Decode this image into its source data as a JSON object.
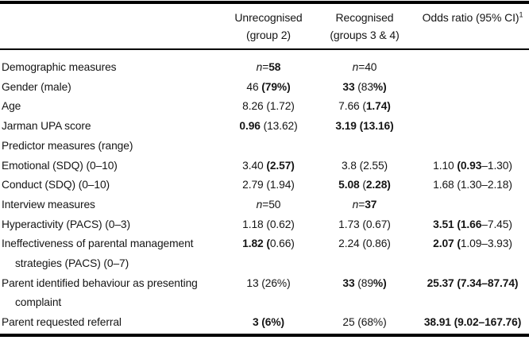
{
  "header": {
    "col2": {
      "line1": "Unrecognised",
      "line2": "(group 2)"
    },
    "col3": {
      "line1": "Recognised",
      "line2": "(groups 3 & 4)"
    },
    "col4": {
      "text": "Odds ratio (95% CI)",
      "footnote_marker": "1"
    }
  },
  "rows": [
    {
      "label": "Demographic measures",
      "unrecognised": [
        {
          "t": "n",
          "i": true
        },
        {
          "t": "="
        },
        {
          "t": "58",
          "b": true
        }
      ],
      "recognised": [
        {
          "t": "n",
          "i": true
        },
        {
          "t": "=40"
        }
      ],
      "odds_ratio": []
    },
    {
      "label": "Gender (male)",
      "unrecognised": [
        {
          "t": "46 "
        },
        {
          "t": "(79%)",
          "b": true
        }
      ],
      "recognised": [
        {
          "t": "33",
          "b": true
        },
        {
          "t": " (83"
        },
        {
          "t": "%)",
          "b": true
        }
      ],
      "odds_ratio": []
    },
    {
      "label": "Age",
      "unrecognised": [
        {
          "t": "8.26 (1.72)"
        }
      ],
      "recognised": [
        {
          "t": "7.66 ("
        },
        {
          "t": "1.74)",
          "b": true
        }
      ],
      "odds_ratio": []
    },
    {
      "label": "Jarman UPA score",
      "unrecognised": [
        {
          "t": "0.96",
          "b": true
        },
        {
          "t": " (13.62)"
        }
      ],
      "recognised": [
        {
          "t": "3.19 (13.16)",
          "b": true
        }
      ],
      "odds_ratio": []
    },
    {
      "label": "Predictor measures (range)",
      "unrecognised": [],
      "recognised": [],
      "odds_ratio": []
    },
    {
      "label": "Emotional (SDQ) (0–10)",
      "unrecognised": [
        {
          "t": "3.40 "
        },
        {
          "t": "(2.57)",
          "b": true
        }
      ],
      "recognised": [
        {
          "t": "3.8 (2.55)"
        }
      ],
      "odds_ratio": [
        {
          "t": "1.10 "
        },
        {
          "t": "(0.93",
          "b": true
        },
        {
          "t": "–1.30)"
        }
      ]
    },
    {
      "label": "Conduct (SDQ) (0–10)",
      "unrecognised": [
        {
          "t": "2.79 (1.94)"
        }
      ],
      "recognised": [
        {
          "t": "5.08",
          "b": true
        },
        {
          "t": " ("
        },
        {
          "t": "2.28)",
          "b": true
        }
      ],
      "odds_ratio": [
        {
          "t": "1.68 (1.30–2.18)"
        }
      ]
    },
    {
      "label": "Interview measures",
      "unrecognised": [
        {
          "t": "n",
          "i": true
        },
        {
          "t": "=50"
        }
      ],
      "recognised": [
        {
          "t": "n",
          "i": true
        },
        {
          "t": "="
        },
        {
          "t": "37",
          "b": true
        }
      ],
      "odds_ratio": []
    },
    {
      "label": "Hyperactivity (PACS) (0–3)",
      "unrecognised": [
        {
          "t": "1.18 (0.62)"
        }
      ],
      "recognised": [
        {
          "t": "1.73 (0.67)"
        }
      ],
      "odds_ratio": [
        {
          "t": "3.51 (1.66",
          "b": true
        },
        {
          "t": "–7.45)"
        }
      ]
    },
    {
      "label": "Ineffectiveness of parental management",
      "label2": "strategies (PACS) (0–7)",
      "unrecognised": [
        {
          "t": "1.82 (",
          "b": true
        },
        {
          "t": "0.66)"
        }
      ],
      "recognised": [
        {
          "t": "2.24 (0.86)"
        }
      ],
      "odds_ratio": [
        {
          "t": "2.07 (",
          "b": true
        },
        {
          "t": "1.09–3.93)"
        }
      ]
    },
    {
      "label": "Parent identified behaviour as presenting",
      "label2": "complaint",
      "unrecognised": [
        {
          "t": "13 (26%)"
        }
      ],
      "recognised": [
        {
          "t": "33",
          "b": true
        },
        {
          "t": " (89"
        },
        {
          "t": "%)",
          "b": true
        }
      ],
      "odds_ratio": [
        {
          "t": "25.37 (7.34–87.74)",
          "b": true
        }
      ]
    },
    {
      "label": "Parent requested referral",
      "unrecognised": [
        {
          "t": "3 (6%)",
          "b": true
        }
      ],
      "recognised": [
        {
          "t": "25 (68%)"
        }
      ],
      "odds_ratio": [
        {
          "t": "38.91 (9.02–167.76)",
          "b": true
        }
      ]
    }
  ],
  "colors": {
    "text": "#151515",
    "rule": "#000000",
    "background": "#ffffff"
  }
}
